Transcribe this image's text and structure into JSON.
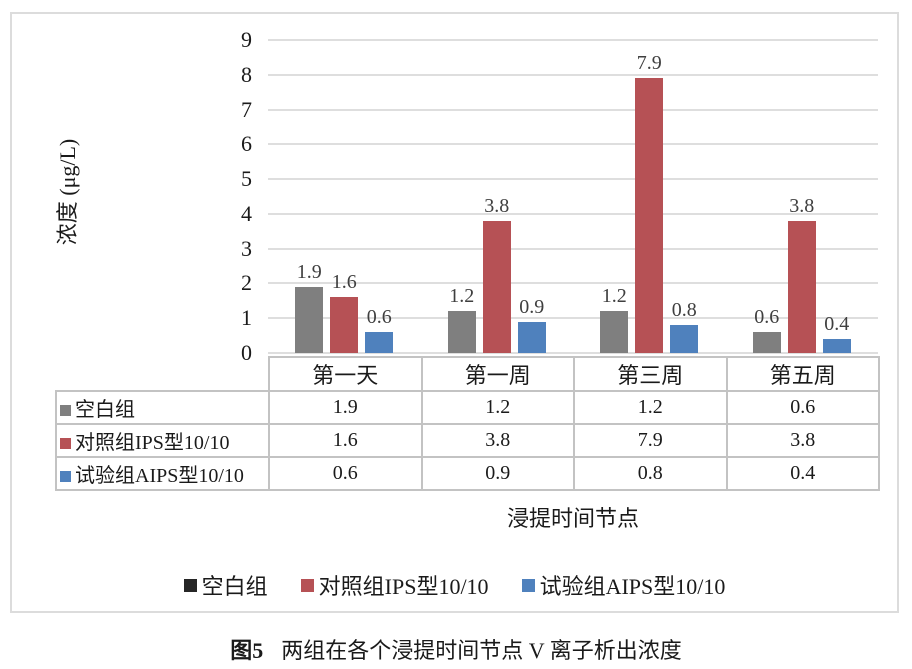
{
  "caption": {
    "label": "图5",
    "text": "两组在各个浸提时间节点 V 离子析出浓度"
  },
  "chart_data": {
    "type": "bar",
    "categories": [
      "第一天",
      "第一周",
      "第三周",
      "第五周"
    ],
    "series": [
      {
        "name": "空白组",
        "color": "#7f7f7f",
        "legend_color": "#262626",
        "values": [
          1.9,
          1.2,
          1.2,
          0.6
        ]
      },
      {
        "name": "对照组IPS型10/10",
        "color": "#b65155",
        "legend_color": "#b65155",
        "values": [
          1.6,
          3.8,
          7.9,
          3.8
        ]
      },
      {
        "name": "试验组AIPS型10/10",
        "color": "#4f81bd",
        "legend_color": "#4f81bd",
        "values": [
          0.6,
          0.9,
          0.8,
          0.4
        ]
      }
    ],
    "ylabel": "浓度 (μg/L)",
    "xlabel": "浸提时间节点",
    "ylim": [
      0,
      9
    ],
    "yticks": [
      0,
      1,
      2,
      3,
      4,
      5,
      6,
      7,
      8,
      9
    ],
    "grid": true,
    "legend_position": "bottom",
    "show_data_table": true,
    "value_decimals": 1
  },
  "style": {
    "grid_color": "#dedede",
    "table_border_color": "#c3c3c3",
    "frame_border_color": "#dcdcdc",
    "data_label_color": "#3f3f3f",
    "text_color": "#1a1a1a"
  }
}
